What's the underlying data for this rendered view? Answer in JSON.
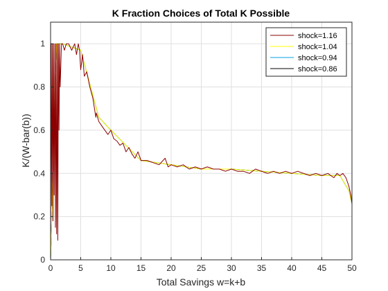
{
  "chart_data": {
    "type": "line",
    "title": "K Fraction Choices of Total K Possible",
    "xlabel": "Total Savings w=k+b",
    "ylabel": "K/(W-bar(b))",
    "xlim": [
      0,
      50
    ],
    "ylim": [
      0,
      1.1
    ],
    "xticks": [
      0,
      5,
      10,
      15,
      20,
      25,
      30,
      35,
      40,
      45,
      50
    ],
    "yticks": [
      0,
      0.2,
      0.4,
      0.6,
      0.8,
      1
    ],
    "xtick_labels": [
      "0",
      "5",
      "10",
      "15",
      "20",
      "25",
      "30",
      "35",
      "40",
      "45",
      "50"
    ],
    "ytick_labels": [
      "0",
      "0.2",
      "0.4",
      "0.6",
      "0.8",
      "1"
    ],
    "grid": true,
    "legend_placement": "top-right",
    "series": [
      {
        "name": "shock=1.16",
        "color": "#8b0000",
        "x": [
          0.0,
          0.1,
          0.2,
          0.3,
          0.4,
          0.5,
          0.6,
          0.7,
          0.8,
          0.9,
          1.0,
          1.1,
          1.2,
          1.3,
          1.4,
          1.5,
          1.6,
          1.8,
          2.0,
          2.3,
          2.6,
          3.0,
          3.5,
          4.0,
          4.3,
          4.6,
          4.8,
          5.0,
          5.3,
          5.6,
          6.0,
          6.5,
          7.0,
          7.5,
          7.6,
          8.0,
          8.5,
          9.0,
          9.5,
          10.0,
          10.5,
          11.0,
          11.5,
          12.0,
          12.5,
          13.0,
          13.5,
          14.0,
          14.5,
          15.0,
          16.0,
          17.0,
          18.0,
          19.0,
          19.5,
          20.0,
          21.0,
          22.0,
          23.0,
          24.0,
          25.0,
          26.0,
          27.0,
          28.0,
          29.0,
          30.0,
          31.0,
          32.0,
          33.0,
          34.0,
          35.0,
          36.0,
          37.0,
          38.0,
          39.0,
          40.0,
          41.0,
          42.0,
          43.0,
          44.0,
          45.0,
          46.0,
          47.0,
          47.5,
          48.0,
          48.5,
          49.0,
          49.5,
          49.8,
          50.0
        ],
        "y": [
          0.0,
          1.0,
          0.25,
          1.0,
          0.18,
          1.0,
          0.3,
          1.0,
          0.15,
          1.0,
          0.12,
          1.0,
          0.09,
          1.0,
          0.6,
          1.0,
          0.8,
          1.0,
          1.0,
          0.97,
          1.0,
          1.0,
          0.97,
          1.0,
          0.95,
          1.0,
          0.97,
          0.88,
          0.95,
          0.85,
          0.87,
          0.8,
          0.75,
          0.66,
          0.68,
          0.64,
          0.62,
          0.6,
          0.58,
          0.6,
          0.56,
          0.55,
          0.53,
          0.54,
          0.5,
          0.52,
          0.49,
          0.47,
          0.5,
          0.46,
          0.46,
          0.45,
          0.44,
          0.47,
          0.43,
          0.44,
          0.43,
          0.44,
          0.42,
          0.43,
          0.42,
          0.43,
          0.42,
          0.42,
          0.41,
          0.42,
          0.41,
          0.41,
          0.4,
          0.42,
          0.41,
          0.4,
          0.41,
          0.4,
          0.41,
          0.4,
          0.41,
          0.4,
          0.39,
          0.4,
          0.39,
          0.4,
          0.38,
          0.4,
          0.39,
          0.4,
          0.38,
          0.34,
          0.3,
          0.26
        ]
      },
      {
        "name": "shock=1.04",
        "color": "#ffff00",
        "x": [
          0.0,
          1.0,
          2.0,
          5.0,
          8.0,
          10.0,
          15.0,
          20.0,
          25.0,
          30.0,
          35.0,
          40.0,
          45.0,
          48.0,
          49.5,
          50.0
        ],
        "y": [
          0.0,
          1.0,
          1.0,
          0.97,
          0.66,
          0.6,
          0.46,
          0.44,
          0.42,
          0.42,
          0.41,
          0.4,
          0.39,
          0.39,
          0.32,
          0.26
        ]
      },
      {
        "name": "shock=0.94",
        "color": "#00a0e6",
        "x": [
          0.0,
          1.0,
          2.0,
          5.0,
          8.0,
          10.0,
          15.0,
          20.0,
          25.0,
          30.0,
          35.0,
          40.0,
          45.0,
          48.0,
          49.5,
          50.0
        ],
        "y": [
          0.0,
          1.0,
          1.0,
          0.97,
          0.66,
          0.6,
          0.46,
          0.44,
          0.42,
          0.42,
          0.41,
          0.4,
          0.39,
          0.39,
          0.32,
          0.26
        ]
      },
      {
        "name": "shock=0.86",
        "color": "#000000",
        "x": [
          0.0,
          1.0,
          2.0,
          5.0,
          8.0,
          10.0,
          15.0,
          20.0,
          25.0,
          30.0,
          35.0,
          40.0,
          45.0,
          48.0,
          49.5,
          50.0
        ],
        "y": [
          0.0,
          1.0,
          1.0,
          0.97,
          0.66,
          0.6,
          0.46,
          0.44,
          0.42,
          0.42,
          0.41,
          0.4,
          0.39,
          0.39,
          0.32,
          0.26
        ]
      }
    ],
    "draw_order": [
      "shock=0.86",
      "shock=0.94",
      "shock=1.04",
      "shock=1.16"
    ]
  }
}
